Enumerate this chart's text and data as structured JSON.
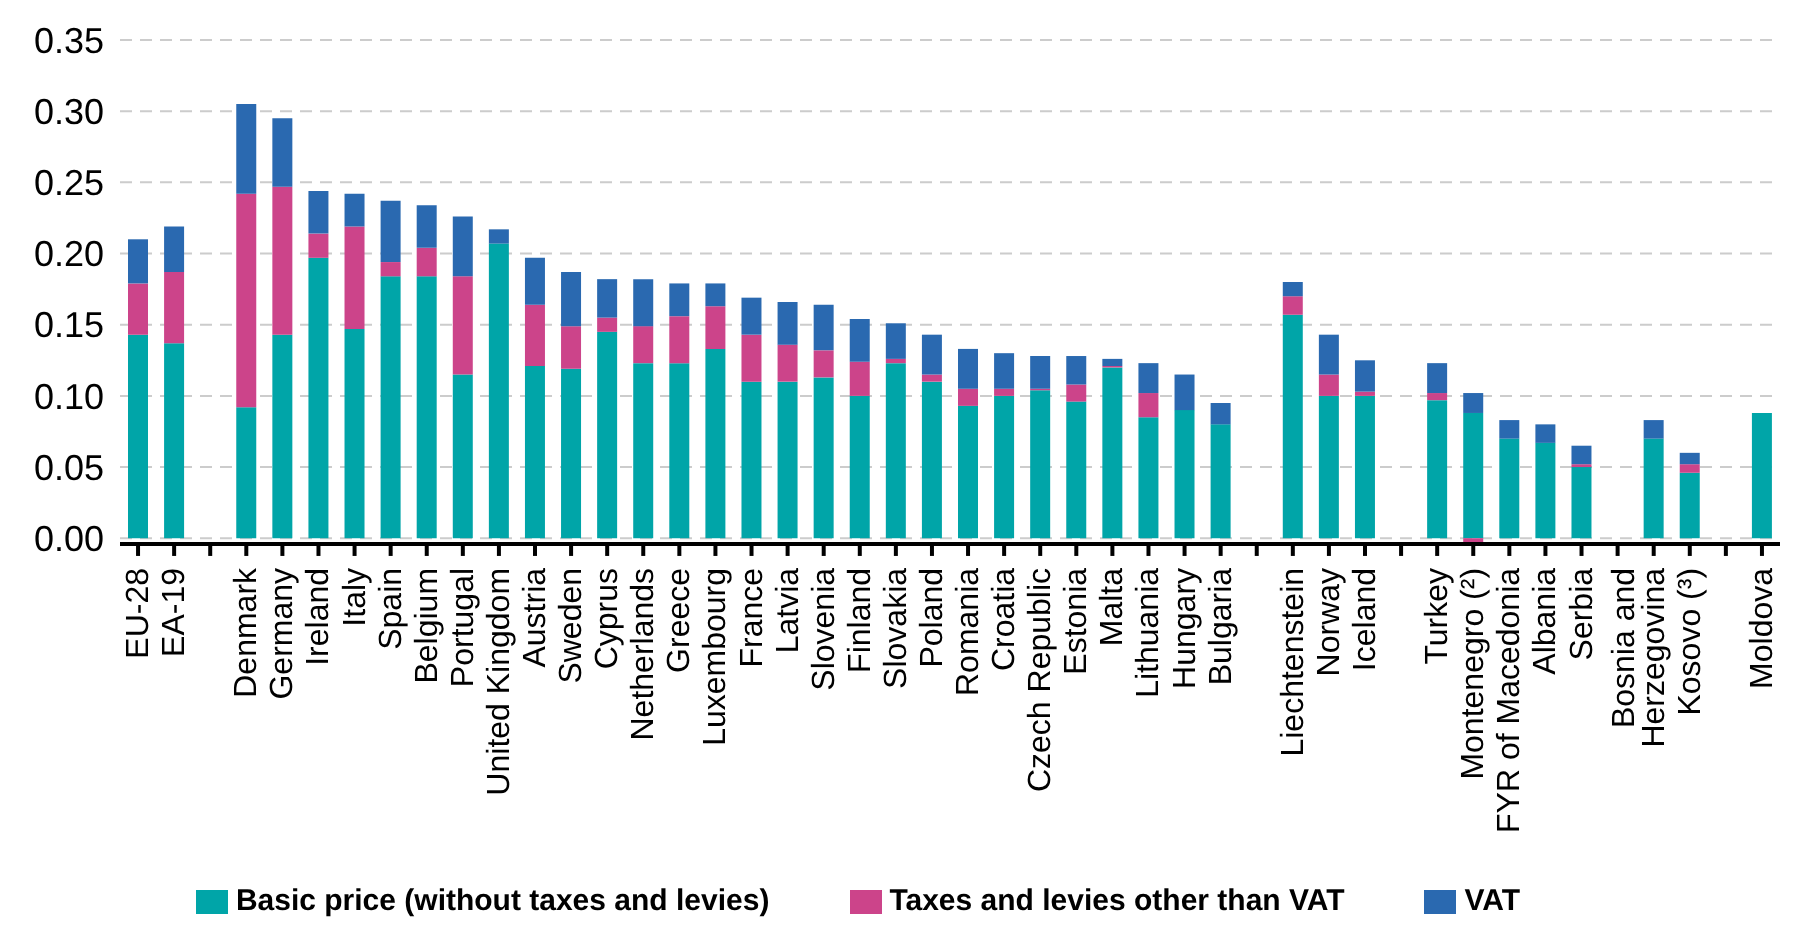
{
  "chart_data": {
    "type": "bar",
    "stacked": true,
    "categories": [
      "EU-28",
      "EA-19",
      null,
      "Denmark",
      "Germany",
      "Ireland",
      "Italy",
      "Spain",
      "Belgium",
      "Portugal",
      "United Kingdom",
      "Austria",
      "Sweden",
      "Cyprus",
      "Netherlands",
      "Greece",
      "Luxembourg",
      "France",
      "Latvia",
      "Slovenia",
      "Finland",
      "Slovakia",
      "Poland",
      "Romania",
      "Croatia",
      "Czech Republic",
      "Estonia",
      "Malta",
      "Lithuania",
      "Hungary",
      "Bulgaria",
      null,
      "Liechtenstein",
      "Norway",
      "Iceland",
      null,
      "Turkey",
      "Montenegro (²)",
      "FYR of Macedonia",
      "Albania",
      "Serbia",
      null,
      "Bosnia and Herzegovina",
      "Kosovo (³)",
      null,
      "Moldova"
    ],
    "series": [
      {
        "name": "Basic price (without taxes and levies)",
        "color": "#00a5a8",
        "values": [
          0.143,
          0.137,
          null,
          0.092,
          0.143,
          0.197,
          0.147,
          0.184,
          0.184,
          0.115,
          0.207,
          0.121,
          0.119,
          0.145,
          0.123,
          0.123,
          0.133,
          0.11,
          0.11,
          0.113,
          0.1,
          0.123,
          0.11,
          0.093,
          0.1,
          0.104,
          0.096,
          0.12,
          0.085,
          0.09,
          0.08,
          null,
          0.157,
          0.1,
          0.1,
          null,
          0.097,
          0.088,
          0.07,
          0.067,
          0.05,
          null,
          0.07,
          0.046,
          null,
          0.088
        ]
      },
      {
        "name": "Taxes and levies other than VAT",
        "color": "#cc448a",
        "values": [
          0.036,
          0.05,
          null,
          0.15,
          0.104,
          0.017,
          0.072,
          0.01,
          0.02,
          0.069,
          0,
          0.043,
          0.03,
          0.01,
          0.026,
          0.033,
          0.03,
          0.033,
          0.026,
          0.019,
          0.024,
          0.003,
          0.005,
          0.012,
          0.005,
          0.001,
          0.012,
          0.001,
          0.017,
          0,
          0,
          null,
          0.013,
          0.015,
          0.003,
          null,
          0.005,
          -0.003,
          0,
          0,
          0.002,
          null,
          0,
          0.006,
          null,
          0
        ]
      },
      {
        "name": "VAT",
        "color": "#2a69b0",
        "values": [
          0.031,
          0.032,
          null,
          0.063,
          0.048,
          0.03,
          0.023,
          0.043,
          0.03,
          0.042,
          0.01,
          0.033,
          0.038,
          0.027,
          0.033,
          0.023,
          0.016,
          0.026,
          0.03,
          0.032,
          0.03,
          0.025,
          0.028,
          0.028,
          0.025,
          0.023,
          0.02,
          0.005,
          0.021,
          0.025,
          0.015,
          null,
          0.01,
          0.028,
          0.022,
          null,
          0.021,
          0.014,
          0.013,
          0.013,
          0.013,
          null,
          0.013,
          0.008,
          null,
          0
        ]
      }
    ],
    "ylim": [
      -0.004,
      0.35
    ],
    "yticks": [
      {
        "value": 0,
        "label": "0.00"
      },
      {
        "value": 0.05,
        "label": "0.05"
      },
      {
        "value": 0.1,
        "label": "0.10"
      },
      {
        "value": 0.15,
        "label": "0.15"
      },
      {
        "value": 0.2,
        "label": "0.20"
      },
      {
        "value": 0.25,
        "label": "0.25"
      },
      {
        "value": 0.3,
        "label": "0.30"
      },
      {
        "value": 0.35,
        "label": "0.35"
      }
    ],
    "grid": "y",
    "legend": "bottom"
  }
}
